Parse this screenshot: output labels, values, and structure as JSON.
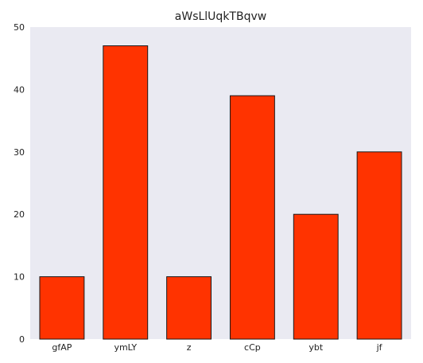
{
  "chart_data": {
    "type": "bar",
    "title": "aWsLlUqkTBqvw",
    "xlabel": "",
    "ylabel": "",
    "categories": [
      "gfAP",
      "ymLY",
      "z",
      "cCp",
      "ybt",
      "jf"
    ],
    "values": [
      10,
      47,
      10,
      39,
      20,
      30
    ],
    "ylim": [
      0,
      50
    ],
    "yticks": [
      0,
      10,
      20,
      30,
      40,
      50
    ],
    "grid": false,
    "legend": "none",
    "colors": {
      "bar": "#ff3300",
      "bar_edge": "#1a1a1a",
      "plot_background": "#eaeaf2"
    }
  }
}
